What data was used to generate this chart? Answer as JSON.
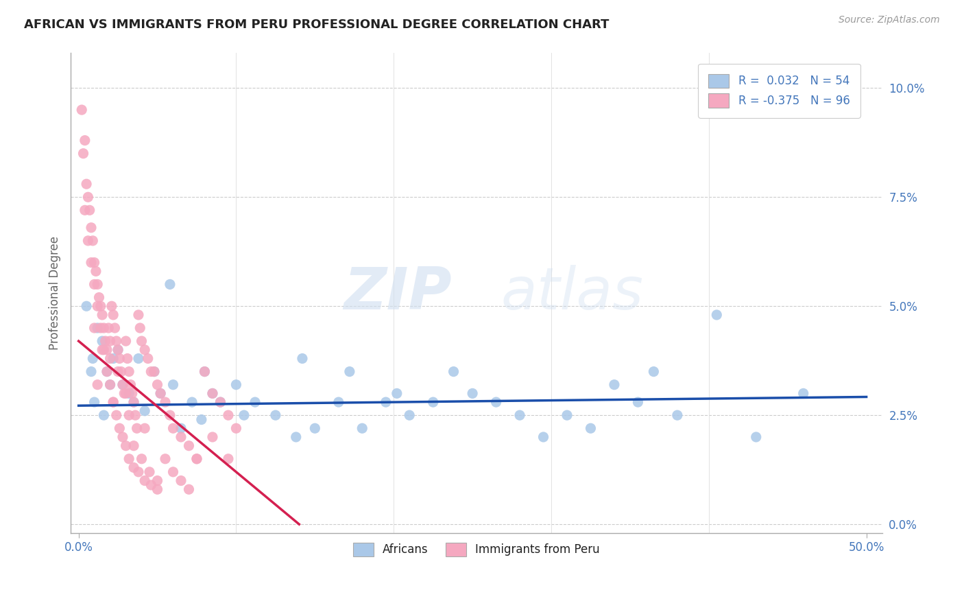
{
  "title": "AFRICAN VS IMMIGRANTS FROM PERU PROFESSIONAL DEGREE CORRELATION CHART",
  "source": "Source: ZipAtlas.com",
  "ylabel": "Professional Degree",
  "ytick_vals": [
    0.0,
    2.5,
    5.0,
    7.5,
    10.0
  ],
  "ytick_labels": [
    "0.0%",
    "2.5%",
    "5.0%",
    "7.5%",
    "10.0%"
  ],
  "xtick_vals": [
    0.0,
    50.0
  ],
  "xtick_labels": [
    "0.0%",
    "50.0%"
  ],
  "xlim": [
    -0.5,
    51.0
  ],
  "ylim": [
    -0.2,
    10.8
  ],
  "blue_color": "#aac8e8",
  "pink_color": "#f5a8c0",
  "blue_line_color": "#1a4eaa",
  "pink_line_color": "#d42050",
  "title_color": "#222222",
  "axis_label_color": "#4477bb",
  "watermark_zip": "ZIP",
  "watermark_atlas": "atlas",
  "background_color": "#ffffff",
  "blue_R": 0.032,
  "blue_N": 54,
  "pink_R": -0.375,
  "pink_N": 96,
  "africans_x": [
    1.5,
    0.8,
    2.2,
    1.0,
    2.8,
    1.2,
    0.5,
    1.8,
    3.2,
    2.5,
    0.9,
    1.6,
    2.0,
    3.5,
    4.8,
    5.2,
    6.0,
    4.2,
    3.8,
    6.5,
    7.2,
    8.0,
    7.8,
    5.8,
    9.0,
    8.5,
    10.5,
    11.2,
    10.0,
    12.5,
    13.8,
    14.2,
    15.0,
    16.5,
    17.2,
    18.0,
    19.5,
    20.2,
    21.0,
    22.5,
    23.8,
    25.0,
    26.5,
    28.0,
    29.5,
    31.0,
    32.5,
    34.0,
    35.5,
    36.5,
    38.0,
    40.5,
    43.0,
    46.0
  ],
  "africans_y": [
    4.2,
    3.5,
    3.8,
    2.8,
    3.2,
    4.5,
    5.0,
    3.5,
    3.0,
    4.0,
    3.8,
    2.5,
    3.2,
    2.8,
    3.5,
    3.0,
    3.2,
    2.6,
    3.8,
    2.2,
    2.8,
    3.5,
    2.4,
    5.5,
    2.8,
    3.0,
    2.5,
    2.8,
    3.2,
    2.5,
    2.0,
    3.8,
    2.2,
    2.8,
    3.5,
    2.2,
    2.8,
    3.0,
    2.5,
    2.8,
    3.5,
    3.0,
    2.8,
    2.5,
    2.0,
    2.5,
    2.2,
    3.2,
    2.8,
    3.5,
    2.5,
    4.8,
    2.0,
    3.0
  ],
  "peru_x": [
    0.2,
    0.3,
    0.4,
    0.5,
    0.6,
    0.7,
    0.8,
    0.9,
    1.0,
    1.1,
    1.2,
    1.3,
    1.4,
    1.5,
    1.6,
    1.7,
    1.8,
    1.9,
    2.0,
    2.1,
    2.2,
    2.3,
    2.4,
    2.5,
    2.6,
    2.7,
    2.8,
    2.9,
    3.0,
    3.1,
    3.2,
    3.3,
    3.4,
    3.5,
    3.6,
    3.7,
    3.8,
    3.9,
    4.0,
    4.2,
    4.4,
    4.6,
    4.8,
    5.0,
    5.2,
    5.5,
    5.8,
    6.0,
    6.5,
    7.0,
    7.5,
    8.0,
    8.5,
    9.0,
    9.5,
    10.0,
    0.4,
    0.6,
    0.8,
    1.0,
    1.2,
    1.4,
    1.6,
    1.8,
    2.0,
    2.2,
    2.4,
    2.6,
    2.8,
    3.0,
    3.2,
    3.5,
    3.8,
    4.2,
    4.6,
    5.0,
    5.5,
    6.0,
    6.5,
    7.0,
    7.5,
    8.5,
    9.5,
    1.0,
    1.5,
    2.0,
    2.5,
    3.0,
    3.5,
    4.0,
    4.5,
    5.0,
    1.2,
    2.2,
    3.2,
    4.2
  ],
  "peru_y": [
    9.5,
    8.5,
    8.8,
    7.8,
    7.5,
    7.2,
    6.8,
    6.5,
    6.0,
    5.8,
    5.5,
    5.2,
    5.0,
    4.8,
    4.5,
    4.2,
    4.0,
    4.5,
    4.2,
    5.0,
    4.8,
    4.5,
    4.2,
    4.0,
    3.8,
    3.5,
    3.2,
    3.0,
    4.2,
    3.8,
    3.5,
    3.2,
    3.0,
    2.8,
    2.5,
    2.2,
    4.8,
    4.5,
    4.2,
    4.0,
    3.8,
    3.5,
    3.5,
    3.2,
    3.0,
    2.8,
    2.5,
    2.2,
    2.0,
    1.8,
    1.5,
    3.5,
    3.0,
    2.8,
    2.5,
    2.2,
    7.2,
    6.5,
    6.0,
    5.5,
    5.0,
    4.5,
    4.0,
    3.5,
    3.2,
    2.8,
    2.5,
    2.2,
    2.0,
    1.8,
    1.5,
    1.3,
    1.2,
    1.0,
    0.9,
    0.8,
    1.5,
    1.2,
    1.0,
    0.8,
    1.5,
    2.0,
    1.5,
    4.5,
    4.0,
    3.8,
    3.5,
    3.0,
    1.8,
    1.5,
    1.2,
    1.0,
    3.2,
    2.8,
    2.5,
    2.2
  ],
  "blue_line_x0": 0.0,
  "blue_line_y0": 2.72,
  "blue_line_x1": 50.0,
  "blue_line_y1": 2.92,
  "pink_line_x0": 0.0,
  "pink_line_y0": 4.2,
  "pink_line_x1": 14.0,
  "pink_line_y1": 0.0
}
